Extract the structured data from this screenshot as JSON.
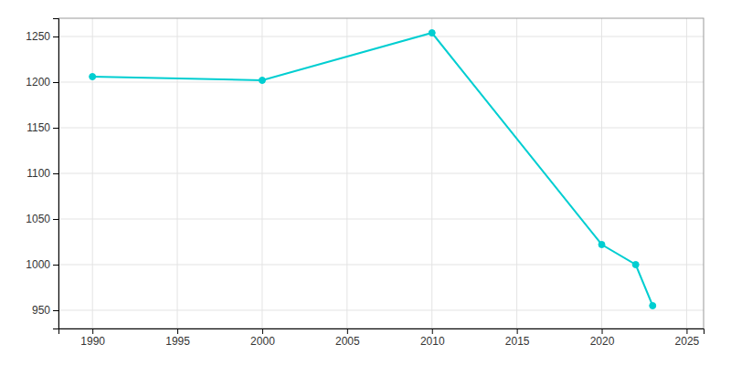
{
  "chart_data": {
    "type": "line",
    "x": [
      1990,
      2000,
      2010,
      2020,
      2022,
      2023
    ],
    "values": [
      1206,
      1202,
      1254,
      1022,
      1000,
      955
    ],
    "color": "#00CED1",
    "marker": "circle",
    "xlim": [
      1988,
      2026
    ],
    "xticks": [
      1990,
      1995,
      2000,
      2005,
      2010,
      2015,
      2020,
      2025
    ],
    "ylim": [
      930,
      1270
    ],
    "yticks": [
      950,
      1000,
      1050,
      1100,
      1150,
      1200,
      1250
    ],
    "grid": true
  }
}
